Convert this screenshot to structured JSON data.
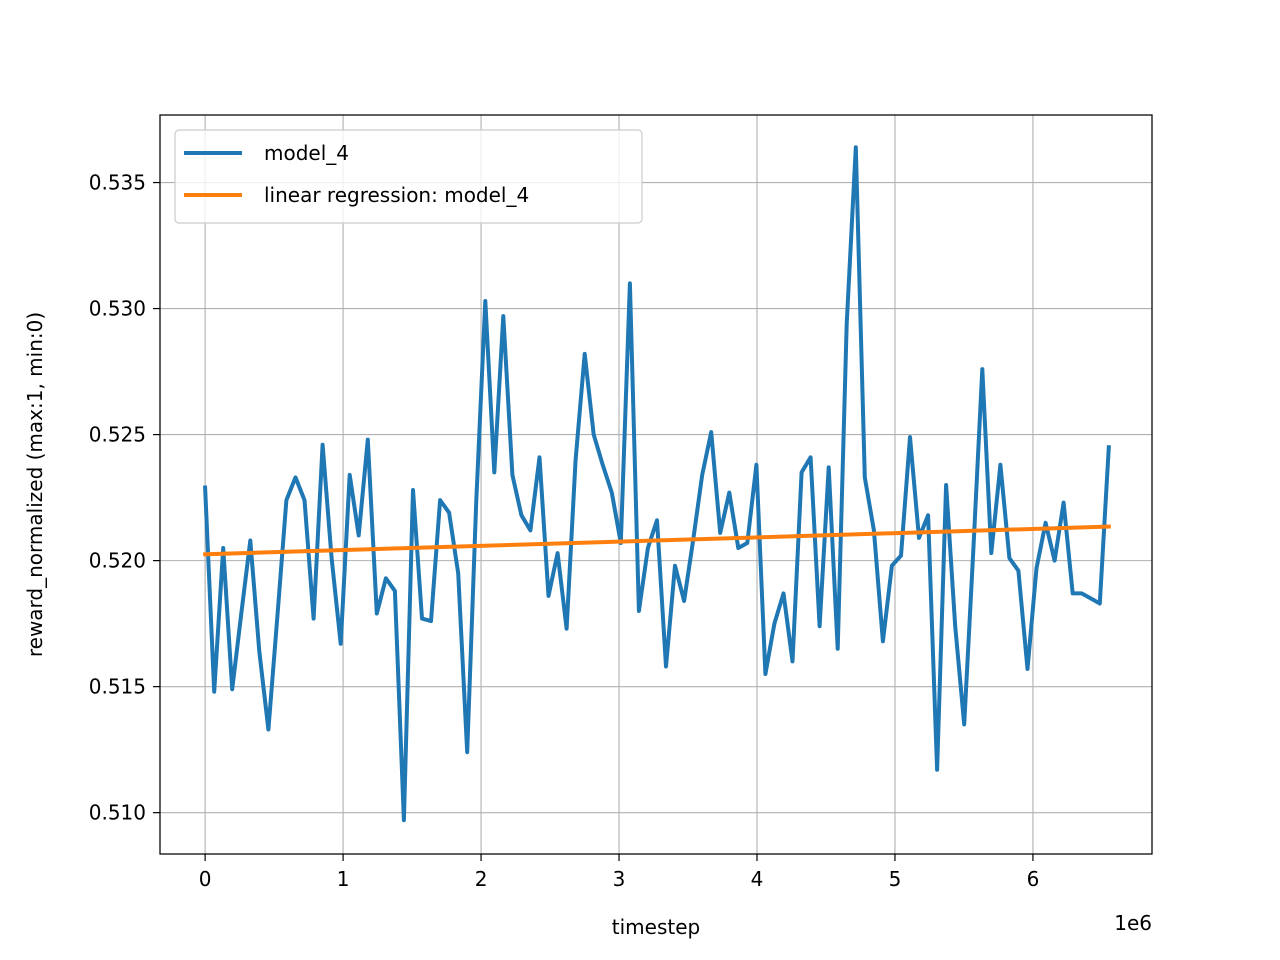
{
  "chart_data": {
    "type": "line",
    "xlabel": "timestep",
    "ylabel": "reward_normalized (max:1, min:0)",
    "x_offset_label": "1e6",
    "xlim": [
      -0.327,
      6.863
    ],
    "ylim": [
      0.50836,
      0.53768
    ],
    "x_ticks": [
      0,
      1,
      2,
      3,
      4,
      5,
      6
    ],
    "x_tick_labels": [
      "0",
      "1",
      "2",
      "3",
      "4",
      "5",
      "6"
    ],
    "y_ticks": [
      0.51,
      0.515,
      0.52,
      0.525,
      0.53,
      0.535
    ],
    "y_tick_labels": [
      "0.510",
      "0.515",
      "0.520",
      "0.525",
      "0.530",
      "0.535"
    ],
    "grid": true,
    "legend_position": "top-left",
    "series": [
      {
        "name": "model_4",
        "color": "#1f77b4",
        "x": [
          0.0,
          0.0655,
          0.131,
          0.1965,
          0.262,
          0.3275,
          0.393,
          0.4585,
          0.524,
          0.5895,
          0.655,
          0.7205,
          0.786,
          0.8515,
          0.917,
          0.9825,
          1.048,
          1.1135,
          1.179,
          1.2445,
          1.31,
          1.3755,
          1.441,
          1.5065,
          1.572,
          1.6375,
          1.703,
          1.7685,
          1.834,
          1.8995,
          1.965,
          2.0305,
          2.096,
          2.1615,
          2.227,
          2.2925,
          2.358,
          2.4235,
          2.489,
          2.5545,
          2.62,
          2.6855,
          2.751,
          2.8165,
          2.882,
          2.9475,
          3.013,
          3.0785,
          3.144,
          3.2095,
          3.275,
          3.3405,
          3.406,
          3.4715,
          3.537,
          3.6025,
          3.668,
          3.7335,
          3.799,
          3.8645,
          3.93,
          3.9955,
          4.061,
          4.1265,
          4.192,
          4.2575,
          4.323,
          4.3885,
          4.454,
          4.5195,
          4.585,
          4.6505,
          4.716,
          4.7815,
          4.847,
          4.9125,
          4.978,
          5.0435,
          5.109,
          5.1745,
          5.24,
          5.3055,
          5.371,
          5.4365,
          5.502,
          5.5675,
          5.633,
          5.6985,
          5.764,
          5.8295,
          5.895,
          5.9605,
          6.026,
          6.0915,
          6.157,
          6.2225,
          6.288,
          6.3535,
          6.419,
          6.4845,
          6.55
        ],
        "values": [
          0.5229,
          0.5148,
          0.5205,
          0.5149,
          0.5179,
          0.5208,
          0.5164,
          0.5133,
          0.5178,
          0.5224,
          0.5233,
          0.5224,
          0.5177,
          0.5246,
          0.5201,
          0.5167,
          0.5234,
          0.521,
          0.5248,
          0.5179,
          0.5193,
          0.5188,
          0.5097,
          0.5228,
          0.5177,
          0.5176,
          0.5224,
          0.5219,
          0.5195,
          0.5124,
          0.5223,
          0.5303,
          0.5235,
          0.5297,
          0.5234,
          0.5218,
          0.5212,
          0.5241,
          0.5186,
          0.5203,
          0.5173,
          0.524,
          0.5282,
          0.525,
          0.5238,
          0.5227,
          0.5207,
          0.531,
          0.518,
          0.5205,
          0.5216,
          0.5158,
          0.5198,
          0.5184,
          0.5208,
          0.5234,
          0.5251,
          0.5211,
          0.5227,
          0.5205,
          0.5207,
          0.5238,
          0.5155,
          0.5175,
          0.5187,
          0.516,
          0.5235,
          0.5241,
          0.5174,
          0.5237,
          0.5165,
          0.5294,
          0.5364,
          0.5233,
          0.5212,
          0.5168,
          0.5198,
          0.5202,
          0.5249,
          0.5209,
          0.5218,
          0.5117,
          0.523,
          0.5174,
          0.5135,
          0.5204,
          0.5276,
          0.5203,
          0.5238,
          0.5201,
          0.5196,
          0.5157,
          0.5197,
          0.5215,
          0.52,
          0.5223,
          0.5187,
          0.5187,
          0.5185,
          0.5183,
          0.5245
        ]
      },
      {
        "name": "linear regression: model_4",
        "color": "#ff7f0e",
        "x": [
          0.0,
          6.55
        ],
        "values": [
          0.52025,
          0.52135
        ]
      }
    ]
  }
}
